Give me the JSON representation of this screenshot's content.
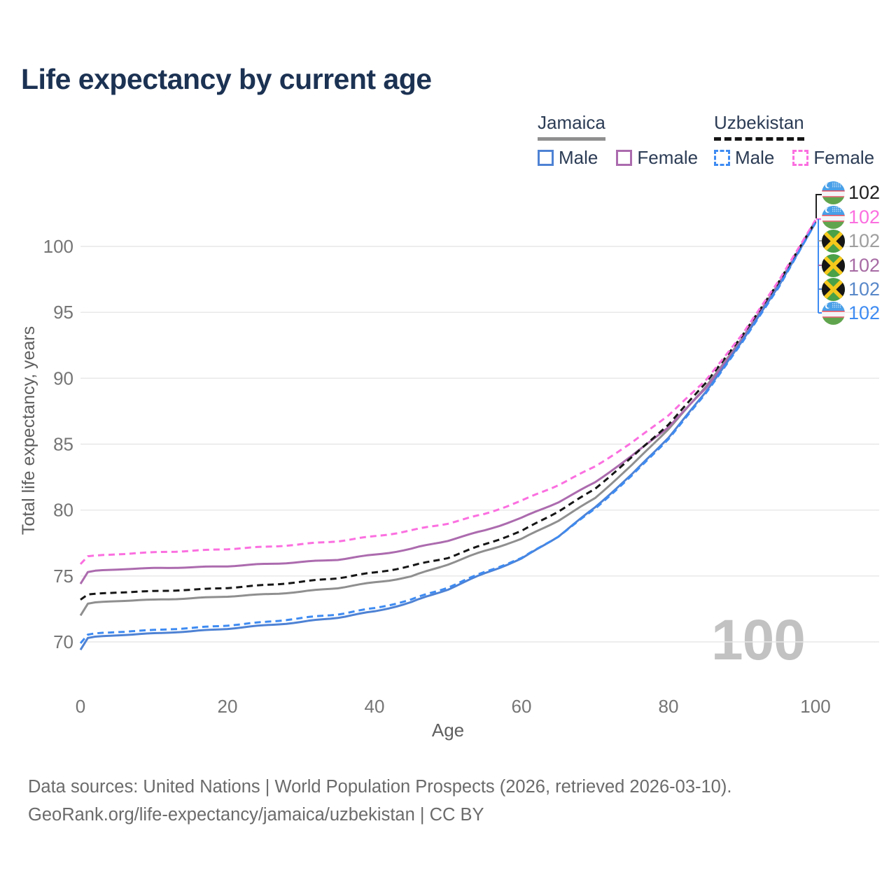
{
  "title": "Life expectancy by current age",
  "legend": {
    "groups": [
      {
        "country": "Jamaica",
        "entries": [
          {
            "label": "Male",
            "color_key": "jm_male",
            "dash": false
          },
          {
            "label": "Female",
            "color_key": "jm_female",
            "dash": false
          }
        ]
      },
      {
        "country": "Uzbekistan",
        "entries": [
          {
            "label": "Male",
            "color_key": "uz_male",
            "dash": true
          },
          {
            "label": "Female",
            "color_key": "uz_female",
            "dash": true
          }
        ]
      }
    ]
  },
  "colors": {
    "jm_male": "#4E82D4",
    "jm_female": "#AC6BAE",
    "jm_all": "#8F8F8F",
    "uz_male": "#3E8BF2",
    "uz_female": "#FB6FE0",
    "uz_all": "#161616",
    "title_navy": "#1C3253",
    "axis_text": "#757575",
    "grid": "#E7E7E7",
    "watermark": "#C2C2C2"
  },
  "chart_data": {
    "type": "line",
    "title": "Life expectancy by current age",
    "xlabel": "Age",
    "ylabel": "Total life expectancy, years",
    "xticks": [
      0,
      20,
      40,
      60,
      80,
      100
    ],
    "yticks": [
      70,
      75,
      80,
      85,
      90,
      95,
      100
    ],
    "xlim": [
      0,
      100
    ],
    "ylim": [
      69,
      102
    ],
    "grid": "horizontal-only",
    "legend_position": "top-right",
    "watermark": "100",
    "x": [
      0,
      1,
      2,
      5,
      10,
      15,
      20,
      25,
      30,
      35,
      40,
      45,
      50,
      55,
      60,
      65,
      70,
      75,
      80,
      85,
      90,
      95,
      100
    ],
    "series": [
      {
        "name": "Jamaica (both sexes)",
        "country": "jamaica",
        "sex": "all",
        "color_key": "jm_all",
        "dash": false,
        "values": [
          72.0,
          72.9,
          73.0,
          73.1,
          73.2,
          73.3,
          73.45,
          73.6,
          73.8,
          74.1,
          74.5,
          74.95,
          75.9,
          76.9,
          77.8,
          79.2,
          80.9,
          83.4,
          86.15,
          89.3,
          93.0,
          97.2,
          101.85
        ]
      },
      {
        "name": "Jamaica — Female",
        "country": "jamaica",
        "sex": "female",
        "color_key": "jm_female",
        "dash": false,
        "values": [
          74.4,
          75.3,
          75.4,
          75.5,
          75.6,
          75.65,
          75.75,
          75.9,
          76.05,
          76.25,
          76.6,
          77.05,
          77.7,
          78.45,
          79.4,
          80.6,
          82.1,
          84.1,
          86.3,
          89.2,
          92.9,
          97.1,
          101.95
        ]
      },
      {
        "name": "Jamaica — Male",
        "country": "jamaica",
        "sex": "male",
        "color_key": "jm_male",
        "dash": false,
        "values": [
          69.4,
          70.3,
          70.4,
          70.5,
          70.65,
          70.8,
          71.0,
          71.25,
          71.5,
          71.85,
          72.3,
          73.0,
          74.0,
          75.2,
          76.3,
          78.0,
          80.2,
          82.7,
          85.5,
          88.9,
          92.8,
          97.0,
          101.8
        ]
      },
      {
        "name": "Uzbekistan (both sexes)",
        "country": "uzbekistan",
        "sex": "all",
        "color_key": "uz_all",
        "dash": true,
        "values": [
          73.2,
          73.6,
          73.65,
          73.75,
          73.85,
          73.95,
          74.1,
          74.3,
          74.55,
          74.85,
          75.25,
          75.75,
          76.4,
          77.4,
          78.4,
          79.9,
          81.6,
          84.0,
          86.5,
          89.6,
          93.2,
          97.3,
          101.9
        ]
      },
      {
        "name": "Uzbekistan — Female",
        "country": "uzbekistan",
        "sex": "female",
        "color_key": "uz_female",
        "dash": true,
        "values": [
          75.9,
          76.5,
          76.55,
          76.65,
          76.8,
          76.9,
          77.05,
          77.2,
          77.4,
          77.65,
          78.0,
          78.45,
          79.0,
          79.7,
          80.7,
          81.9,
          83.3,
          85.1,
          87.2,
          89.8,
          93.3,
          97.4,
          102.0
        ]
      },
      {
        "name": "Uzbekistan — Male",
        "country": "uzbekistan",
        "sex": "male",
        "color_key": "uz_male",
        "dash": true,
        "values": [
          69.9,
          70.55,
          70.65,
          70.75,
          70.9,
          71.05,
          71.25,
          71.5,
          71.8,
          72.1,
          72.55,
          73.2,
          74.15,
          75.3,
          76.35,
          78.0,
          80.1,
          82.6,
          85.4,
          88.8,
          92.7,
          96.9,
          101.8
        ]
      }
    ],
    "end_labels": [
      {
        "country": "uzbekistan",
        "value": "102",
        "color": "#202020"
      },
      {
        "country": "uzbekistan",
        "value": "102",
        "color": "#FB6FE0"
      },
      {
        "country": "jamaica",
        "value": "102",
        "color": "#9E9E9E"
      },
      {
        "country": "jamaica",
        "value": "102",
        "color": "#A76BA4"
      },
      {
        "country": "jamaica",
        "value": "102",
        "color": "#5988C9"
      },
      {
        "country": "uzbekistan",
        "value": "102",
        "color": "#3E8BF2"
      }
    ]
  },
  "footer": {
    "line1": "Data sources: United Nations | World Population Prospects (2026, retrieved 2026-03-10).",
    "line2": "GeoRank.org/life-expectancy/jamaica/uzbekistan | CC BY"
  }
}
